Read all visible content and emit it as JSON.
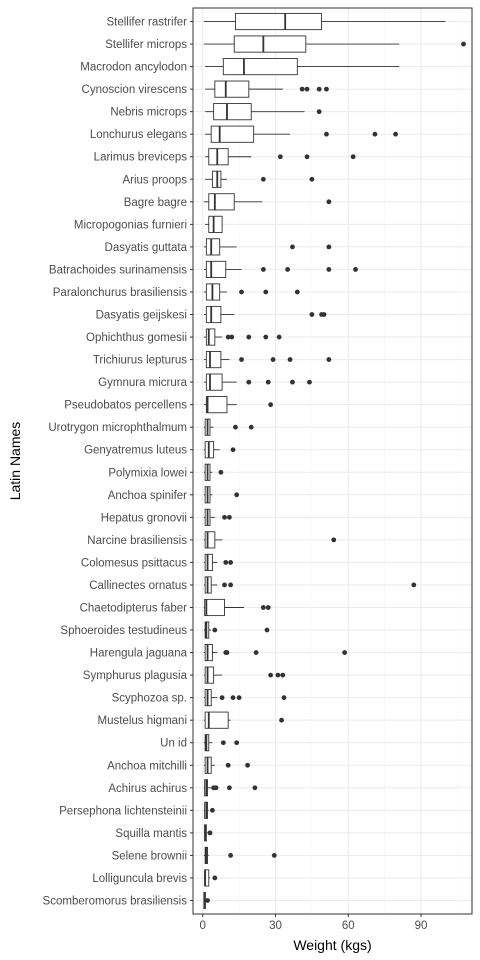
{
  "chart_data": {
    "type": "boxplot",
    "orientation": "horizontal",
    "title": "",
    "xlabel": "Weight (kgs)",
    "ylabel": "Latin Names",
    "xlim": [
      -4,
      111
    ],
    "xticks": [
      0,
      30,
      60,
      90
    ],
    "grid": true,
    "legend": "none",
    "colors": {
      "box_fill": "#ffffff",
      "stroke": "#333333",
      "outlier": "#333333",
      "grid_major": "#ebebeb",
      "grid_minor": "#f5f5f5",
      "panel_border": "#333333"
    },
    "series": [
      {
        "name": "Stellifer rastrifer",
        "whisker_low": 0.5,
        "q1": 13.5,
        "median": 34,
        "q3": 49,
        "whisker_high": 100,
        "outliers": []
      },
      {
        "name": "Stellifer microps",
        "whisker_low": 0.5,
        "q1": 13,
        "median": 25,
        "q3": 42.5,
        "whisker_high": 81,
        "outliers": [
          107.5
        ]
      },
      {
        "name": "Macrodon ancylodon",
        "whisker_low": 1,
        "q1": 8.5,
        "median": 17,
        "q3": 39,
        "whisker_high": 81,
        "outliers": []
      },
      {
        "name": "Cynoscion virescens",
        "whisker_low": 1,
        "q1": 5,
        "median": 9.5,
        "q3": 19,
        "whisker_high": 33,
        "outliers": [
          41,
          43,
          48,
          51
        ]
      },
      {
        "name": "Nebris microps",
        "whisker_low": 1,
        "q1": 4.5,
        "median": 10,
        "q3": 20,
        "whisker_high": 42,
        "outliers": [
          48
        ]
      },
      {
        "name": "Lonchurus elegans",
        "whisker_low": 1,
        "q1": 3.5,
        "median": 7,
        "q3": 21,
        "whisker_high": 36,
        "outliers": [
          51,
          71,
          79.5
        ]
      },
      {
        "name": "Larimus breviceps",
        "whisker_low": 1,
        "q1": 2.5,
        "median": 6,
        "q3": 10.5,
        "whisker_high": 20,
        "outliers": [
          32,
          43,
          62
        ]
      },
      {
        "name": "Arius proops",
        "whisker_low": 1,
        "q1": 4,
        "median": 6,
        "q3": 7.5,
        "whisker_high": 10,
        "outliers": [
          25,
          45
        ]
      },
      {
        "name": "Bagre bagre",
        "whisker_low": 0.5,
        "q1": 2.5,
        "median": 5,
        "q3": 13,
        "whisker_high": 24.5,
        "outliers": [
          52
        ]
      },
      {
        "name": "Micropogonias furnieri",
        "whisker_low": 1,
        "q1": 2.5,
        "median": 4.5,
        "q3": 8,
        "whisker_high": 8,
        "outliers": []
      },
      {
        "name": "Dasyatis guttata",
        "whisker_low": 0.5,
        "q1": 1.5,
        "median": 3.5,
        "q3": 7,
        "whisker_high": 14,
        "outliers": [
          37,
          52
        ]
      },
      {
        "name": "Batrachoides surinamensis",
        "whisker_low": 0.5,
        "q1": 1.5,
        "median": 3.5,
        "q3": 9.5,
        "whisker_high": 16,
        "outliers": [
          25,
          35,
          52,
          63
        ]
      },
      {
        "name": "Paralonchurus brasiliensis",
        "whisker_low": 0.5,
        "q1": 1.5,
        "median": 4,
        "q3": 7,
        "whisker_high": 10,
        "outliers": [
          16,
          26,
          39
        ]
      },
      {
        "name": "Dasyatis geijskesi",
        "whisker_low": 0.5,
        "q1": 1.5,
        "median": 3.5,
        "q3": 7.5,
        "whisker_high": 13,
        "outliers": [
          45,
          49,
          50
        ]
      },
      {
        "name": "Ophichthus gomesii",
        "whisker_low": 0.5,
        "q1": 1.5,
        "median": 2.5,
        "q3": 5,
        "whisker_high": 8,
        "outliers": [
          10.5,
          12,
          19,
          26,
          31.5
        ]
      },
      {
        "name": "Trichiurus lepturus",
        "whisker_low": 0.5,
        "q1": 1.5,
        "median": 3,
        "q3": 7.5,
        "whisker_high": 11,
        "outliers": [
          16,
          29,
          36,
          52
        ]
      },
      {
        "name": "Gymnura micrura",
        "whisker_low": 0.5,
        "q1": 1.5,
        "median": 3,
        "q3": 8,
        "whisker_high": 14,
        "outliers": [
          19,
          27,
          37,
          44
        ]
      },
      {
        "name": "Pseudobatos percellens",
        "whisker_low": 0.5,
        "q1": 1.5,
        "median": 2,
        "q3": 10,
        "whisker_high": 14,
        "outliers": [
          28
        ]
      },
      {
        "name": "Urotrygon microphthalmum",
        "whisker_low": 0.5,
        "q1": 1,
        "median": 2,
        "q3": 3,
        "whisker_high": 4.5,
        "outliers": [
          13.5,
          20
        ]
      },
      {
        "name": "Genyatremus luteus",
        "whisker_low": 0.5,
        "q1": 1,
        "median": 2.5,
        "q3": 4.5,
        "whisker_high": 7,
        "outliers": [
          12.5
        ]
      },
      {
        "name": "Polymixia lowei",
        "whisker_low": 0.5,
        "q1": 1,
        "median": 2,
        "q3": 3,
        "whisker_high": 4,
        "outliers": [
          7.5
        ]
      },
      {
        "name": "Anchoa spinifer",
        "whisker_low": 0.5,
        "q1": 1,
        "median": 2,
        "q3": 3,
        "whisker_high": 4,
        "outliers": [
          14
        ]
      },
      {
        "name": "Hepatus gronovii",
        "whisker_low": 0.5,
        "q1": 1,
        "median": 2,
        "q3": 3,
        "whisker_high": 5,
        "outliers": [
          9,
          11
        ]
      },
      {
        "name": "Narcine brasiliensis",
        "whisker_low": 0.5,
        "q1": 1,
        "median": 2,
        "q3": 5,
        "whisker_high": 8,
        "outliers": [
          54
        ]
      },
      {
        "name": "Colomesus psittacus",
        "whisker_low": 0.5,
        "q1": 1,
        "median": 2,
        "q3": 4,
        "whisker_high": 6,
        "outliers": [
          9.5,
          11.5
        ]
      },
      {
        "name": "Callinectes ornatus",
        "whisker_low": 0.5,
        "q1": 1,
        "median": 2,
        "q3": 3.5,
        "whisker_high": 6,
        "outliers": [
          9,
          11.5,
          87
        ]
      },
      {
        "name": "Chaetodipterus faber",
        "whisker_low": 0.5,
        "q1": 0.8,
        "median": 1.5,
        "q3": 9,
        "whisker_high": 17,
        "outliers": [
          25,
          27
        ]
      },
      {
        "name": "Sphoeroides testudineus",
        "whisker_low": 0.5,
        "q1": 1,
        "median": 1.5,
        "q3": 2.5,
        "whisker_high": 3.5,
        "outliers": [
          5,
          26.5
        ]
      },
      {
        "name": "Harengula jaguana",
        "whisker_low": 0.5,
        "q1": 1,
        "median": 2,
        "q3": 4,
        "whisker_high": 6,
        "outliers": [
          9.5,
          10,
          22,
          58.5
        ]
      },
      {
        "name": "Symphurus plagusia",
        "whisker_low": 0.5,
        "q1": 1,
        "median": 2,
        "q3": 4.5,
        "whisker_high": 8,
        "outliers": [
          28,
          31,
          33
        ]
      },
      {
        "name": "Scyphozoa sp.",
        "whisker_low": 0.5,
        "q1": 1,
        "median": 2,
        "q3": 3.5,
        "whisker_high": 6,
        "outliers": [
          8,
          12.5,
          15,
          33.5
        ]
      },
      {
        "name": "Mustelus higmani",
        "whisker_low": 0.5,
        "q1": 1,
        "median": 2.5,
        "q3": 10.5,
        "whisker_high": 11.5,
        "outliers": [
          32.5
        ]
      },
      {
        "name": "Un id",
        "whisker_low": 0.5,
        "q1": 1,
        "median": 1.5,
        "q3": 2.5,
        "whisker_high": 4,
        "outliers": [
          8.5,
          14
        ]
      },
      {
        "name": "Anchoa mitchilli",
        "whisker_low": 0.5,
        "q1": 1,
        "median": 2,
        "q3": 3.5,
        "whisker_high": 5,
        "outliers": [
          10.5,
          18.5
        ]
      },
      {
        "name": "Achirus achirus",
        "whisker_low": 0.5,
        "q1": 0.8,
        "median": 1.5,
        "q3": 2,
        "whisker_high": 3.5,
        "outliers": [
          4.5,
          5.5,
          11,
          21.5
        ]
      },
      {
        "name": "Persephona lichtensteinii",
        "whisker_low": 0.5,
        "q1": 0.8,
        "median": 1.5,
        "q3": 2,
        "whisker_high": 2.5,
        "outliers": [
          4
        ]
      },
      {
        "name": "Squilla mantis",
        "whisker_low": 0.5,
        "q1": 0.8,
        "median": 1,
        "q3": 1.5,
        "whisker_high": 2,
        "outliers": [
          3
        ]
      },
      {
        "name": "Selene brownii",
        "whisker_low": 0.5,
        "q1": 1,
        "median": 1.5,
        "q3": 2,
        "whisker_high": 2.5,
        "outliers": [
          11.5,
          29.5
        ]
      },
      {
        "name": "Lolliguncula brevis",
        "whisker_low": 0.5,
        "q1": 0.8,
        "median": 1,
        "q3": 2.5,
        "whisker_high": 3,
        "outliers": [
          5
        ]
      },
      {
        "name": "Scomberomorus brasiliensis",
        "whisker_low": 0.5,
        "q1": 0.5,
        "median": 0.7,
        "q3": 1,
        "whisker_high": 1.2,
        "outliers": [
          2
        ]
      }
    ]
  }
}
